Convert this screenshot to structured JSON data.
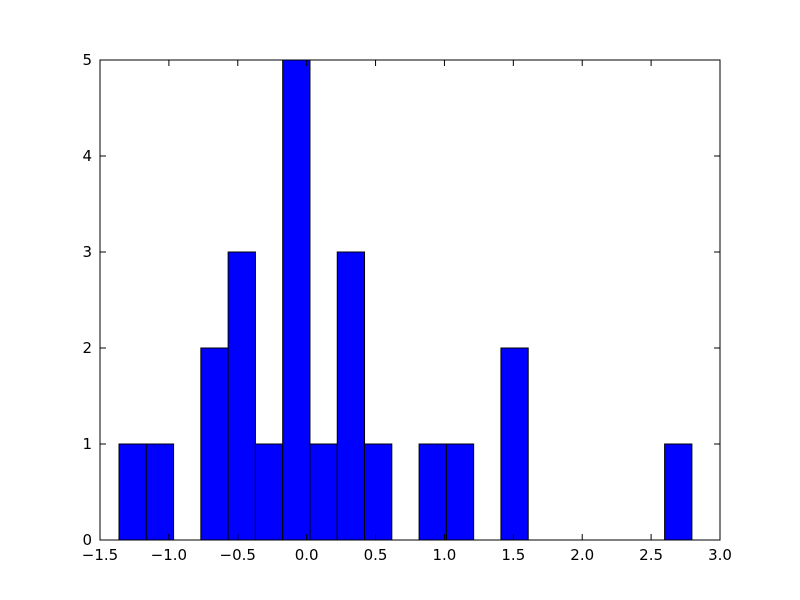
{
  "chart_data": {
    "type": "histogram",
    "bins": [
      -1.362,
      -1.164,
      -0.966,
      -0.768,
      -0.57,
      -0.372,
      -0.174,
      0.024,
      0.222,
      0.42,
      0.618,
      0.816,
      1.014,
      1.212,
      1.41,
      1.608,
      1.806,
      2.004,
      2.202,
      2.4,
      2.598,
      2.796
    ],
    "values": [
      1,
      1,
      0,
      2,
      3,
      1,
      5,
      1,
      3,
      1,
      0,
      1,
      1,
      0,
      2,
      0,
      0,
      0,
      0,
      0,
      1
    ],
    "color": "#0000ff",
    "xlim": [
      -1.5,
      3.0
    ],
    "xticks": [
      {
        "value": -1.5,
        "label": "−1.5"
      },
      {
        "value": -1.0,
        "label": "−1.0"
      },
      {
        "value": -0.5,
        "label": "−0.5"
      },
      {
        "value": 0,
        "label": "0.0"
      },
      {
        "value": 0.5,
        "label": "0.5"
      },
      {
        "value": 1,
        "label": "1.0"
      },
      {
        "value": 1.5,
        "label": "1.5"
      },
      {
        "value": 2,
        "label": "2.0"
      },
      {
        "value": 2.5,
        "label": "2.5"
      },
      {
        "value": 3,
        "label": "3.0"
      }
    ],
    "ylim": [
      0,
      5
    ],
    "yticks": [
      0,
      1,
      2,
      3,
      4,
      5
    ]
  }
}
